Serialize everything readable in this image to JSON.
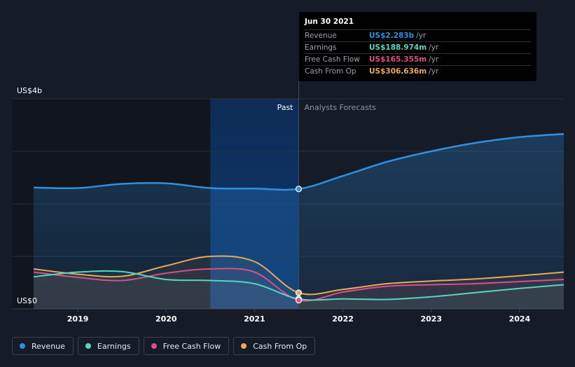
{
  "chart_data": {
    "type": "line",
    "ylabel_top": "US$4b",
    "ylabel_bottom": "US$0",
    "ylim": [
      0,
      4000
    ],
    "xlim": [
      2018.5,
      2024.5
    ],
    "x_ticks": [
      "2019",
      "2020",
      "2021",
      "2022",
      "2023",
      "2024"
    ],
    "past_label": "Past",
    "forecast_label": "Analysts Forecasts",
    "divider_x": 2021.5,
    "highlight_start_x": 2020.5,
    "grid": true,
    "legend_position": "bottom-left",
    "series": [
      {
        "name": "Revenue",
        "color": "#2f8fe0",
        "points": [
          [
            2018.5,
            2310
          ],
          [
            2019.0,
            2300
          ],
          [
            2019.5,
            2380
          ],
          [
            2020.0,
            2390
          ],
          [
            2020.5,
            2300
          ],
          [
            2021.0,
            2290
          ],
          [
            2021.5,
            2283
          ],
          [
            2022.0,
            2530
          ],
          [
            2022.5,
            2800
          ],
          [
            2023.0,
            3000
          ],
          [
            2023.5,
            3160
          ],
          [
            2024.0,
            3270
          ],
          [
            2024.5,
            3330
          ]
        ]
      },
      {
        "name": "Earnings",
        "color": "#55d6c2",
        "points": [
          [
            2018.5,
            610
          ],
          [
            2019.0,
            700
          ],
          [
            2019.5,
            710
          ],
          [
            2020.0,
            560
          ],
          [
            2020.5,
            540
          ],
          [
            2021.0,
            480
          ],
          [
            2021.5,
            188.974
          ],
          [
            2022.0,
            190
          ],
          [
            2022.5,
            180
          ],
          [
            2023.0,
            230
          ],
          [
            2023.5,
            310
          ],
          [
            2024.0,
            390
          ],
          [
            2024.5,
            460
          ]
        ]
      },
      {
        "name": "Free Cash Flow",
        "color": "#d94f8a",
        "points": [
          [
            2018.5,
            700
          ],
          [
            2019.0,
            600
          ],
          [
            2019.5,
            540
          ],
          [
            2020.0,
            680
          ],
          [
            2020.5,
            760
          ],
          [
            2021.0,
            700
          ],
          [
            2021.5,
            165.355
          ],
          [
            2022.0,
            320
          ],
          [
            2022.5,
            430
          ],
          [
            2023.0,
            460
          ],
          [
            2023.5,
            480
          ],
          [
            2024.0,
            520
          ],
          [
            2024.5,
            560
          ]
        ]
      },
      {
        "name": "Cash From Op",
        "color": "#e8a95a",
        "points": [
          [
            2018.5,
            760
          ],
          [
            2019.0,
            660
          ],
          [
            2019.5,
            620
          ],
          [
            2020.0,
            820
          ],
          [
            2020.5,
            1000
          ],
          [
            2021.0,
            900
          ],
          [
            2021.5,
            306.636
          ],
          [
            2022.0,
            370
          ],
          [
            2022.5,
            480
          ],
          [
            2023.0,
            530
          ],
          [
            2023.5,
            570
          ],
          [
            2024.0,
            630
          ],
          [
            2024.5,
            700
          ]
        ]
      }
    ]
  },
  "tooltip": {
    "date": "Jun 30 2021",
    "rows": [
      {
        "label": "Revenue",
        "value": "US$2.283b",
        "unit": "/yr",
        "color": "#2f8fe0"
      },
      {
        "label": "Earnings",
        "value": "US$188.974m",
        "unit": "/yr",
        "color": "#55d6c2"
      },
      {
        "label": "Free Cash Flow",
        "value": "US$165.355m",
        "unit": "/yr",
        "color": "#d94f8a"
      },
      {
        "label": "Cash From Op",
        "value": "US$306.636m",
        "unit": "/yr",
        "color": "#e8a95a"
      }
    ]
  },
  "legend": [
    {
      "label": "Revenue",
      "color": "#2f8fe0"
    },
    {
      "label": "Earnings",
      "color": "#55d6c2"
    },
    {
      "label": "Free Cash Flow",
      "color": "#d94f8a"
    },
    {
      "label": "Cash From Op",
      "color": "#e8a95a"
    }
  ]
}
